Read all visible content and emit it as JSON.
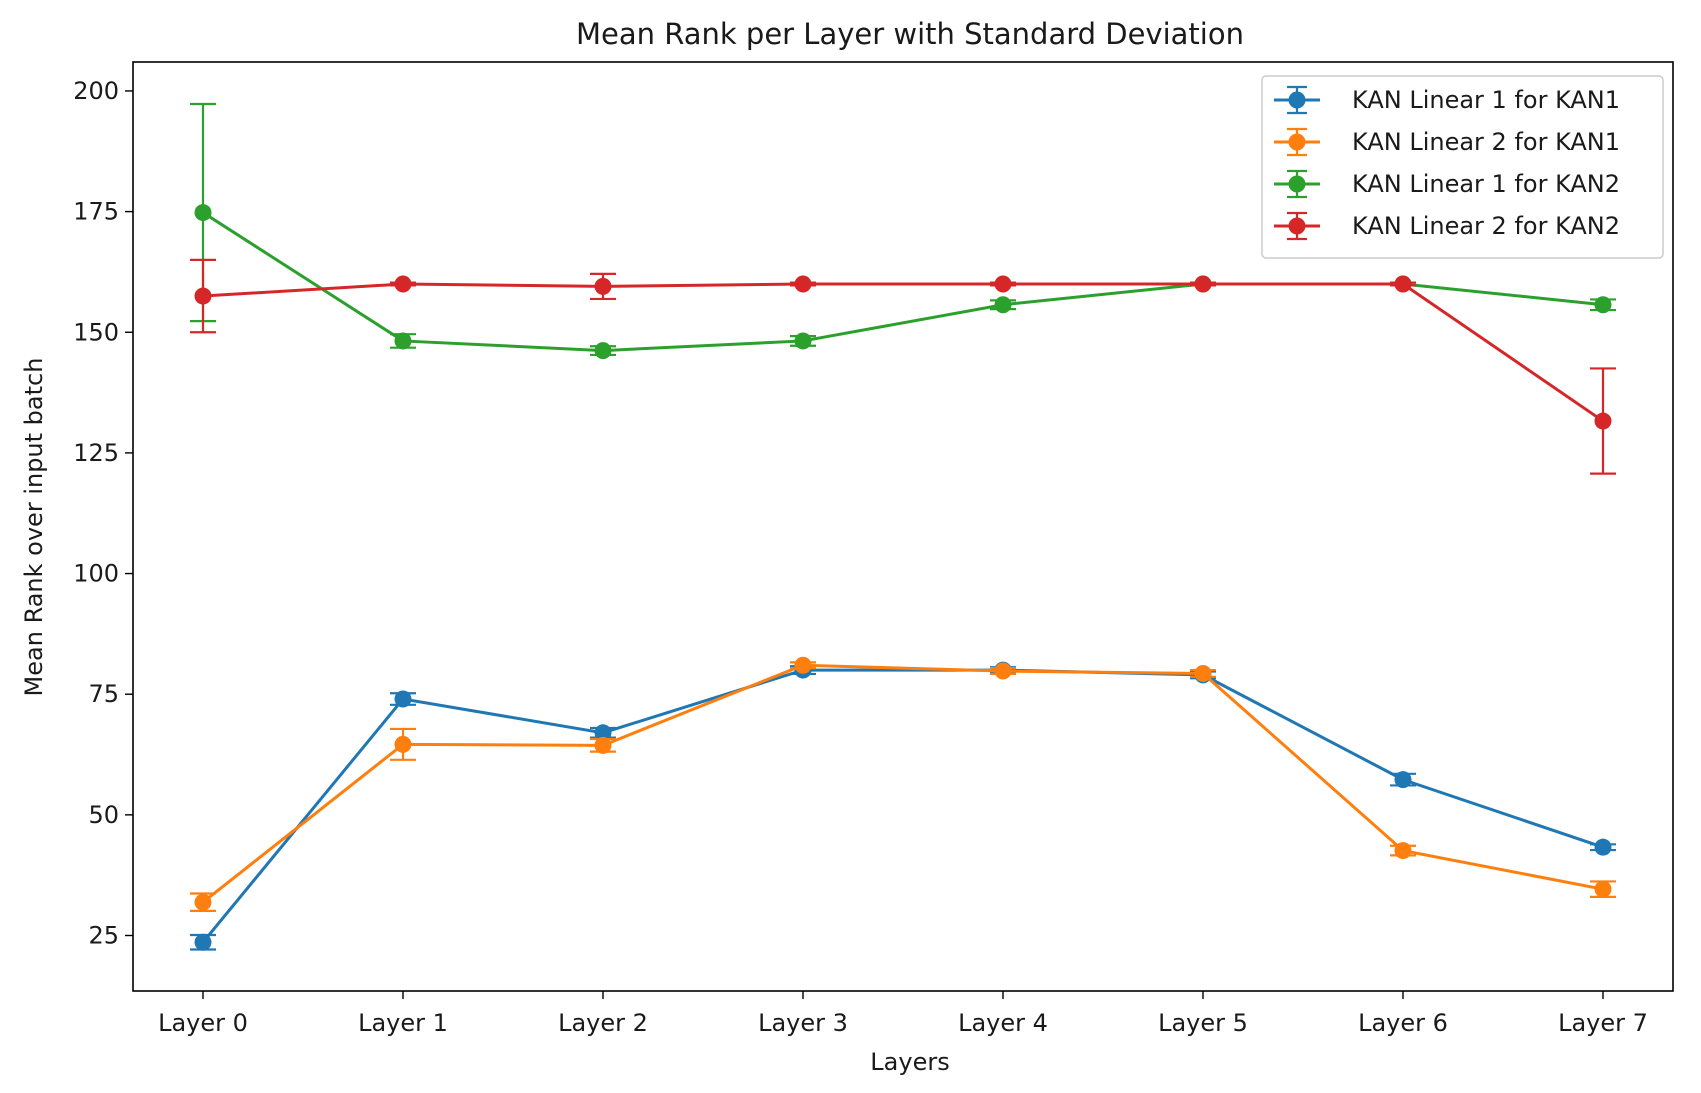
{
  "chart_data": {
    "type": "line",
    "title": "Mean Rank per Layer with Standard Deviation",
    "xlabel": "Layers",
    "ylabel": "Mean Rank over input batch",
    "categories": [
      "Layer 0",
      "Layer 1",
      "Layer 2",
      "Layer 3",
      "Layer 4",
      "Layer 5",
      "Layer 6",
      "Layer 7"
    ],
    "ylim": [
      13.5,
      206
    ],
    "yticks": [
      25,
      50,
      75,
      100,
      125,
      150,
      175,
      200
    ],
    "grid": false,
    "legend_position": "top-right",
    "series": [
      {
        "name": "KAN Linear 1 for KAN1",
        "color": "#1f77b4",
        "values": [
          23.6,
          74.0,
          67.0,
          80.0,
          80.0,
          79.0,
          57.3,
          43.3
        ],
        "std": [
          1.5,
          1.2,
          1.0,
          0.8,
          0.6,
          0.7,
          1.2,
          0.6
        ]
      },
      {
        "name": "KAN Linear 2 for KAN1",
        "color": "#ff7f0e",
        "values": [
          31.9,
          64.6,
          64.4,
          81.0,
          79.8,
          79.3,
          42.6,
          34.6
        ],
        "std": [
          1.8,
          3.2,
          1.3,
          0.6,
          0.6,
          0.7,
          1.0,
          1.6
        ]
      },
      {
        "name": "KAN Linear 1 for KAN2",
        "color": "#2ca02c",
        "values": [
          174.8,
          148.2,
          146.2,
          148.2,
          155.7,
          160.0,
          160.0,
          155.7
        ],
        "std": [
          22.5,
          1.4,
          0.9,
          1.0,
          0.9,
          0.3,
          0.3,
          1.1
        ]
      },
      {
        "name": "KAN Linear 2 for KAN2",
        "color": "#d62728",
        "values": [
          157.5,
          160.0,
          159.5,
          160.0,
          160.0,
          160.0,
          160.0,
          131.6
        ],
        "std": [
          7.5,
          0.3,
          2.6,
          0.3,
          0.3,
          0.3,
          0.3,
          10.9
        ]
      }
    ]
  }
}
